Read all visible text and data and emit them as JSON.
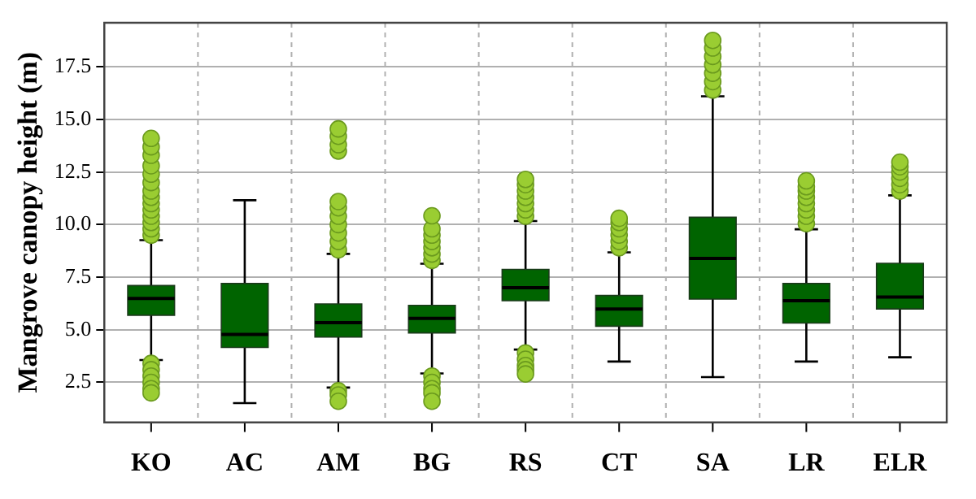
{
  "chart_data": {
    "type": "box",
    "ylabel": "Mangrove canopy height (m)",
    "categories": [
      "KO",
      "AC",
      "AM",
      "BG",
      "RS",
      "CT",
      "SA",
      "LR",
      "ELR"
    ],
    "series": [
      {
        "color": "#006400",
        "boxes": [
          {
            "low": 3.56,
            "q1": 5.69,
            "median": 6.49,
            "q3": 7.1,
            "high": 9.26,
            "outliers": [
              9.5,
              9.8,
              10.1,
              10.4,
              10.7,
              11.0,
              11.3,
              11.6,
              12.0,
              12.4,
              12.8,
              13.3,
              13.7,
              14.1,
              3.4,
              3.1,
              2.8,
              2.5,
              2.2,
              2.0
            ]
          },
          {
            "low": 1.51,
            "q1": 4.16,
            "median": 4.78,
            "q3": 7.2,
            "high": 11.16
          },
          {
            "low": 2.25,
            "q1": 4.65,
            "median": 5.34,
            "q3": 6.23,
            "high": 8.61,
            "outliers": [
              8.8,
              9.2,
              9.6,
              10.0,
              10.4,
              10.8,
              11.1,
              13.5,
              13.8,
              14.2,
              14.55,
              2.1,
              1.9,
              1.6
            ]
          },
          {
            "low": 2.92,
            "q1": 4.85,
            "median": 5.54,
            "q3": 6.16,
            "high": 8.14,
            "outliers": [
              8.3,
              8.6,
              8.9,
              9.2,
              9.5,
              9.8,
              10.42,
              2.8,
              2.5,
              2.2,
              2.0,
              1.6
            ]
          },
          {
            "low": 4.06,
            "q1": 6.38,
            "median": 7.0,
            "q3": 7.87,
            "high": 10.17,
            "outliers": [
              10.4,
              10.7,
              11.0,
              11.3,
              11.6,
              11.9,
              12.15,
              3.9,
              3.6,
              3.3,
              3.1,
              2.9
            ]
          },
          {
            "low": 3.49,
            "q1": 5.17,
            "median": 5.99,
            "q3": 6.63,
            "high": 8.68,
            "outliers": [
              8.9,
              9.2,
              9.5,
              9.8,
              10.1,
              10.3
            ]
          },
          {
            "low": 2.75,
            "q1": 6.46,
            "median": 8.39,
            "q3": 10.35,
            "high": 16.1,
            "outliers": [
              16.4,
              16.8,
              17.2,
              17.6,
              18.0,
              18.4,
              18.76
            ]
          },
          {
            "low": 3.49,
            "q1": 5.32,
            "median": 6.38,
            "q3": 7.2,
            "high": 9.78,
            "outliers": [
              10.05,
              10.4,
              10.7,
              11.0,
              11.3,
              11.6,
              11.8,
              12.08
            ]
          },
          {
            "low": 3.69,
            "q1": 5.99,
            "median": 6.56,
            "q3": 8.16,
            "high": 11.39,
            "outliers": [
              11.6,
              11.9,
              12.2,
              12.5,
              12.75,
              12.97
            ]
          }
        ]
      }
    ],
    "ylim": [
      0.6,
      19.6
    ],
    "yticks": [
      2.5,
      {
        "value": 5,
        "label": "5.0"
      },
      7.5,
      {
        "value": 10,
        "label": "10.0"
      },
      12.5,
      {
        "value": 15,
        "label": "15.0"
      },
      17.5
    ],
    "grid": true,
    "marker": "circle",
    "legend": false
  }
}
